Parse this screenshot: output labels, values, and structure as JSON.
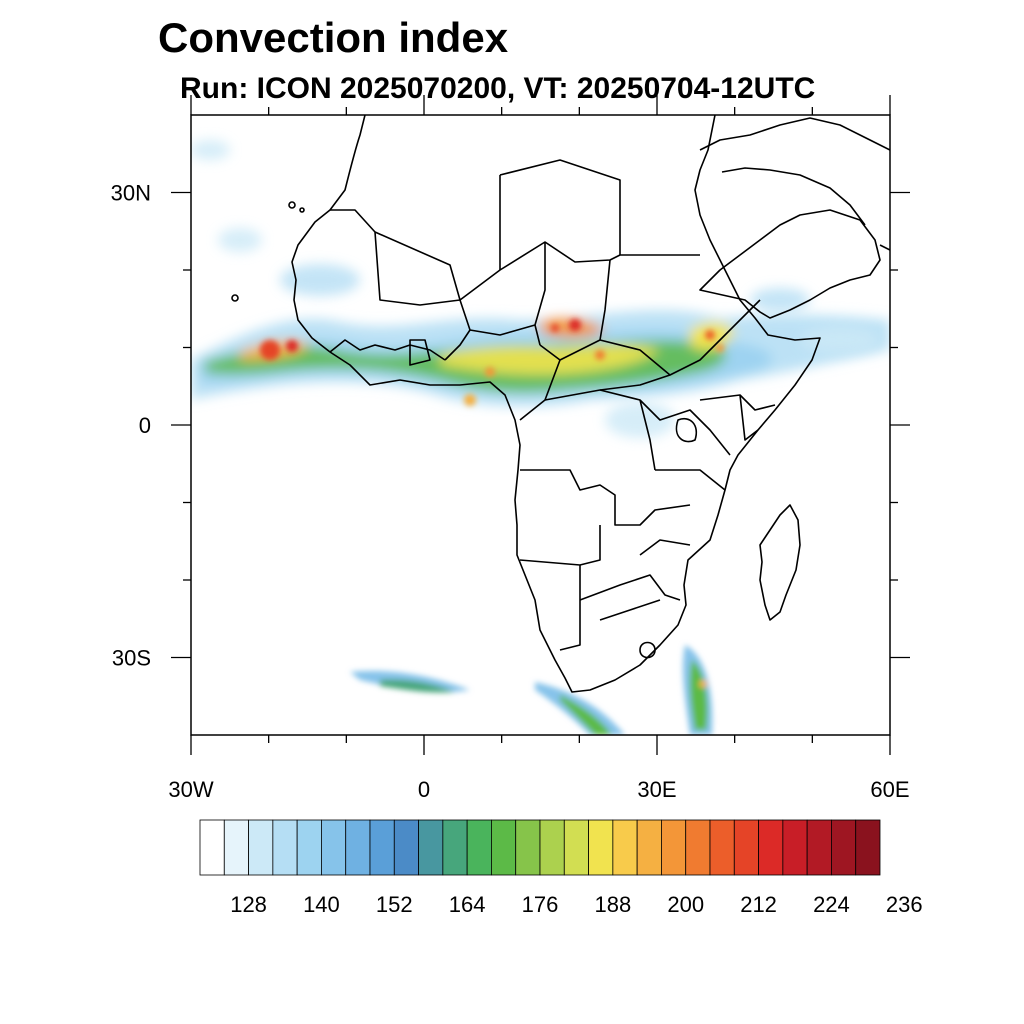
{
  "title": "Convection index",
  "subtitle": "Run: ICON 2025070200,  VT: 20250704-12UTC",
  "map": {
    "lon_range": [
      -30,
      60
    ],
    "lat_range": [
      -40,
      40
    ],
    "lat_ticks": [
      {
        "value": 30,
        "label": "30N"
      },
      {
        "value": 0,
        "label": "0"
      },
      {
        "value": -30,
        "label": "30S"
      }
    ],
    "lon_ticks": [
      {
        "value": -30,
        "label": "30W"
      },
      {
        "value": 0,
        "label": "0"
      },
      {
        "value": 30,
        "label": "30E"
      },
      {
        "value": 60,
        "label": "60E"
      }
    ],
    "minor_lon_ticks": [
      -20,
      -10,
      10,
      20,
      40,
      50
    ],
    "minor_lat_ticks": [
      20,
      10,
      -10,
      -20
    ]
  },
  "colorbar": {
    "colors": [
      "#ffffff",
      "#e6f4fb",
      "#cce9f7",
      "#b5def4",
      "#9dd3f0",
      "#86c3ea",
      "#6fb1e2",
      "#5a9fd8",
      "#4b8bc7",
      "#4897a0",
      "#47a67c",
      "#4ab45c",
      "#5cba47",
      "#86c44a",
      "#acd14e",
      "#d2de52",
      "#f1e34f",
      "#f8cb4b",
      "#f5b042",
      "#f39638",
      "#f07b30",
      "#ec5e2a",
      "#e54427",
      "#dc2a27",
      "#c81e27",
      "#b21a25",
      "#9e1622",
      "#8a121e"
    ],
    "labels": [
      128,
      140,
      152,
      164,
      176,
      188,
      200,
      212,
      224,
      236
    ]
  }
}
